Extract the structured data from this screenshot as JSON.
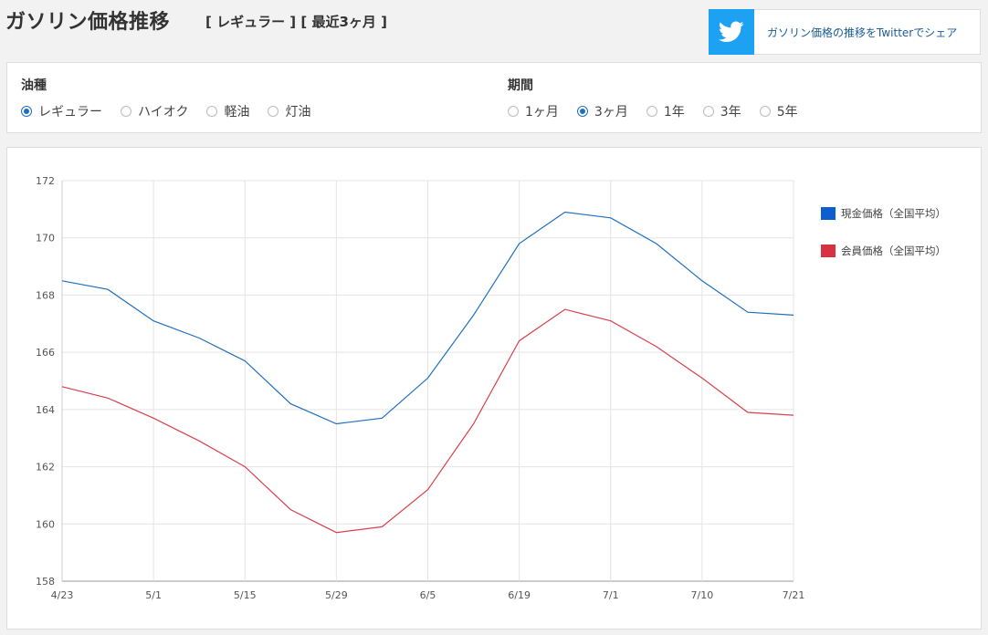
{
  "header": {
    "title": "ガソリン価格推移",
    "subtitle": "[ レギュラー ] [ 最近3ヶ月 ]"
  },
  "share": {
    "label": "ガソリン価格の推移をTwitterでシェア",
    "icon": "twitter-bird-icon",
    "icon_bg": "#1da1f2"
  },
  "filters": {
    "fuel": {
      "title": "油種",
      "options": [
        {
          "label": "レギュラー",
          "checked": true
        },
        {
          "label": "ハイオク",
          "checked": false
        },
        {
          "label": "軽油",
          "checked": false
        },
        {
          "label": "灯油",
          "checked": false
        }
      ]
    },
    "period": {
      "title": "期間",
      "options": [
        {
          "label": "1ヶ月",
          "checked": false
        },
        {
          "label": "3ヶ月",
          "checked": true
        },
        {
          "label": "1年",
          "checked": false
        },
        {
          "label": "3年",
          "checked": false
        },
        {
          "label": "5年",
          "checked": false
        }
      ]
    }
  },
  "chart_data": {
    "type": "line",
    "x": [
      "4/23",
      "",
      "5/1",
      "",
      "5/15",
      "",
      "5/29",
      "",
      "6/5",
      "",
      "6/19",
      "",
      "7/1",
      "",
      "7/10",
      "",
      "7/21"
    ],
    "x_tick_labels": [
      "4/23",
      "5/1",
      "5/15",
      "5/29",
      "6/5",
      "6/19",
      "7/1",
      "7/10",
      "7/21"
    ],
    "series": [
      {
        "name": "現金価格（全国平均）",
        "color": "#1f6fbf",
        "legend_color": "#0d5fd1",
        "values": [
          168.5,
          168.2,
          167.1,
          166.5,
          165.7,
          164.2,
          163.5,
          163.7,
          165.1,
          167.3,
          169.8,
          170.9,
          170.7,
          169.8,
          168.5,
          167.4,
          167.3
        ]
      },
      {
        "name": "会員価格（全国平均）",
        "color": "#d9414f",
        "legend_color": "#d83140",
        "values": [
          164.8,
          164.4,
          163.7,
          162.9,
          162.0,
          160.5,
          159.7,
          159.9,
          161.2,
          163.5,
          166.4,
          167.5,
          167.1,
          166.2,
          165.1,
          163.9,
          163.8
        ]
      }
    ],
    "ylim": [
      158,
      172
    ],
    "y_ticks": [
      158,
      160,
      162,
      164,
      166,
      168,
      170,
      172
    ],
    "grid": true,
    "legend": "right",
    "xlabel": "",
    "ylabel": ""
  }
}
